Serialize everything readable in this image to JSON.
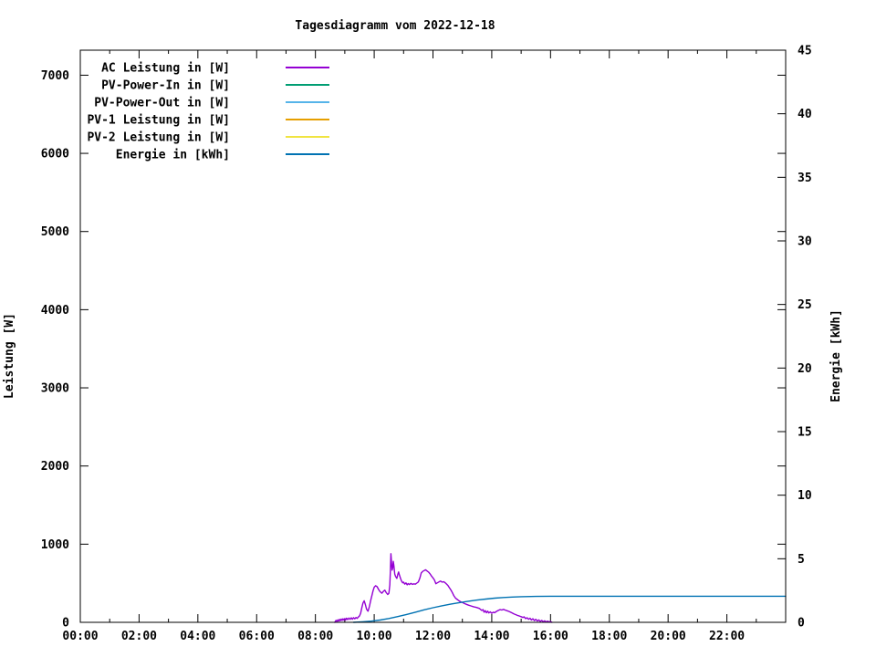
{
  "chart_data": {
    "type": "line",
    "title": "Tagesdiagramm vom 2022-12-18",
    "x_axis": {
      "label": "",
      "range_hours": [
        0,
        24
      ],
      "major_tick_step_hours": 2,
      "minor_tick_step_hours": 1,
      "tick_values": [
        0,
        2,
        4,
        6,
        8,
        10,
        12,
        14,
        16,
        18,
        20,
        22
      ],
      "tick_labels": [
        "00:00",
        "02:00",
        "04:00",
        "06:00",
        "08:00",
        "10:00",
        "12:00",
        "14:00",
        "16:00",
        "18:00",
        "20:00",
        "22:00"
      ]
    },
    "y_left_axis": {
      "label": "Leistung [W]",
      "range": [
        0,
        7320
      ],
      "tick_values": [
        0,
        1000,
        2000,
        3000,
        4000,
        5000,
        6000,
        7000
      ],
      "tick_labels": [
        "0",
        "1000",
        "2000",
        "3000",
        "4000",
        "5000",
        "6000",
        "7000"
      ]
    },
    "y_right_axis": {
      "label": "Energie [kWh]",
      "range": [
        0,
        45
      ],
      "tick_values": [
        0,
        5,
        10,
        15,
        20,
        25,
        30,
        35,
        40,
        45
      ],
      "tick_labels": [
        "0",
        "5",
        "10",
        "15",
        "20",
        "25",
        "30",
        "35",
        "40",
        "45"
      ]
    },
    "grid": false,
    "legend_position": "top-left-inside",
    "legend": [
      {
        "label": "AC Leistung in [W]",
        "color": "#9400d3"
      },
      {
        "label": "PV-Power-In in [W]",
        "color": "#009e73"
      },
      {
        "label": "PV-Power-Out in [W]",
        "color": "#56b4e9"
      },
      {
        "label": "PV-1 Leistung in [W]",
        "color": "#e69f00"
      },
      {
        "label": "PV-2 Leistung in [W]",
        "color": "#f0e442"
      },
      {
        "label": "Energie in [kWh]",
        "color": "#0072b2"
      }
    ],
    "series": [
      {
        "name": "AC Leistung in [W]",
        "axis": "left",
        "color": "#9400d3",
        "units": "W",
        "points_hours_vs_watt": [
          [
            8.66,
            0
          ],
          [
            8.7,
            25
          ],
          [
            8.73,
            10
          ],
          [
            8.76,
            32
          ],
          [
            8.79,
            15
          ],
          [
            8.82,
            38
          ],
          [
            8.85,
            20
          ],
          [
            8.88,
            42
          ],
          [
            8.91,
            24
          ],
          [
            8.94,
            45
          ],
          [
            8.97,
            28
          ],
          [
            9.0,
            48
          ],
          [
            9.03,
            30
          ],
          [
            9.06,
            52
          ],
          [
            9.1,
            35
          ],
          [
            9.14,
            55
          ],
          [
            9.18,
            38
          ],
          [
            9.22,
            58
          ],
          [
            9.26,
            40
          ],
          [
            9.3,
            60
          ],
          [
            9.34,
            45
          ],
          [
            9.38,
            62
          ],
          [
            9.42,
            50
          ],
          [
            9.46,
            68
          ],
          [
            9.5,
            82
          ],
          [
            9.54,
            120
          ],
          [
            9.58,
            190
          ],
          [
            9.62,
            248
          ],
          [
            9.66,
            275
          ],
          [
            9.7,
            228
          ],
          [
            9.74,
            168
          ],
          [
            9.79,
            142
          ],
          [
            9.84,
            205
          ],
          [
            9.88,
            278
          ],
          [
            9.92,
            340
          ],
          [
            9.96,
            402
          ],
          [
            10.0,
            450
          ],
          [
            10.05,
            468
          ],
          [
            10.1,
            455
          ],
          [
            10.15,
            420
          ],
          [
            10.2,
            392
          ],
          [
            10.26,
            372
          ],
          [
            10.31,
            396
          ],
          [
            10.36,
            412
          ],
          [
            10.41,
            380
          ],
          [
            10.46,
            356
          ],
          [
            10.5,
            372
          ],
          [
            10.53,
            480
          ],
          [
            10.55,
            655
          ],
          [
            10.57,
            878
          ],
          [
            10.59,
            760
          ],
          [
            10.61,
            668
          ],
          [
            10.63,
            700
          ],
          [
            10.65,
            780
          ],
          [
            10.67,
            722
          ],
          [
            10.7,
            618
          ],
          [
            10.73,
            585
          ],
          [
            10.77,
            562
          ],
          [
            10.8,
            612
          ],
          [
            10.83,
            645
          ],
          [
            10.86,
            602
          ],
          [
            10.9,
            556
          ],
          [
            10.93,
            530
          ],
          [
            10.97,
            506
          ],
          [
            11.0,
            514
          ],
          [
            11.04,
            488
          ],
          [
            11.08,
            504
          ],
          [
            11.12,
            480
          ],
          [
            11.16,
            496
          ],
          [
            11.2,
            483
          ],
          [
            11.25,
            498
          ],
          [
            11.3,
            486
          ],
          [
            11.35,
            493
          ],
          [
            11.4,
            488
          ],
          [
            11.45,
            502
          ],
          [
            11.5,
            516
          ],
          [
            11.55,
            562
          ],
          [
            11.6,
            630
          ],
          [
            11.65,
            652
          ],
          [
            11.7,
            662
          ],
          [
            11.75,
            672
          ],
          [
            11.8,
            656
          ],
          [
            11.85,
            642
          ],
          [
            11.9,
            620
          ],
          [
            11.95,
            592
          ],
          [
            12.0,
            568
          ],
          [
            12.05,
            542
          ],
          [
            12.1,
            494
          ],
          [
            12.15,
            506
          ],
          [
            12.2,
            516
          ],
          [
            12.26,
            528
          ],
          [
            12.31,
            514
          ],
          [
            12.36,
            520
          ],
          [
            12.41,
            508
          ],
          [
            12.46,
            490
          ],
          [
            12.51,
            472
          ],
          [
            12.56,
            442
          ],
          [
            12.61,
            414
          ],
          [
            12.66,
            378
          ],
          [
            12.71,
            340
          ],
          [
            12.77,
            308
          ],
          [
            12.83,
            292
          ],
          [
            12.89,
            274
          ],
          [
            12.95,
            262
          ],
          [
            13.01,
            252
          ],
          [
            13.07,
            240
          ],
          [
            13.14,
            230
          ],
          [
            13.21,
            220
          ],
          [
            13.29,
            210
          ],
          [
            13.38,
            200
          ],
          [
            13.48,
            190
          ],
          [
            13.58,
            178
          ],
          [
            13.66,
            152
          ],
          [
            13.7,
            164
          ],
          [
            13.74,
            130
          ],
          [
            13.78,
            150
          ],
          [
            13.82,
            122
          ],
          [
            13.86,
            142
          ],
          [
            13.9,
            120
          ],
          [
            13.95,
            134
          ],
          [
            14.0,
            116
          ],
          [
            14.05,
            130
          ],
          [
            14.1,
            124
          ],
          [
            14.16,
            140
          ],
          [
            14.22,
            152
          ],
          [
            14.28,
            162
          ],
          [
            14.34,
            158
          ],
          [
            14.4,
            166
          ],
          [
            14.46,
            156
          ],
          [
            14.52,
            148
          ],
          [
            14.58,
            140
          ],
          [
            14.64,
            130
          ],
          [
            14.7,
            118
          ],
          [
            14.76,
            106
          ],
          [
            14.82,
            98
          ],
          [
            14.88,
            88
          ],
          [
            14.94,
            80
          ],
          [
            15.0,
            72
          ],
          [
            15.06,
            62
          ],
          [
            15.1,
            70
          ],
          [
            15.15,
            48
          ],
          [
            15.2,
            58
          ],
          [
            15.25,
            38
          ],
          [
            15.3,
            52
          ],
          [
            15.35,
            30
          ],
          [
            15.4,
            45
          ],
          [
            15.45,
            22
          ],
          [
            15.5,
            38
          ],
          [
            15.55,
            18
          ],
          [
            15.6,
            30
          ],
          [
            15.65,
            12
          ],
          [
            15.7,
            25
          ],
          [
            15.75,
            8
          ],
          [
            15.8,
            20
          ],
          [
            15.85,
            6
          ],
          [
            15.9,
            15
          ],
          [
            15.95,
            5
          ],
          [
            16.0,
            10
          ],
          [
            16.05,
            0
          ]
        ]
      },
      {
        "name": "PV-Power-In in [W]",
        "axis": "left",
        "color": "#009e73",
        "units": "W",
        "points_hours_vs_watt": []
      },
      {
        "name": "PV-Power-Out in [W]",
        "axis": "left",
        "color": "#56b4e9",
        "units": "W",
        "points_hours_vs_watt": []
      },
      {
        "name": "PV-1 Leistung in [W]",
        "axis": "left",
        "color": "#e69f00",
        "units": "W",
        "points_hours_vs_watt": []
      },
      {
        "name": "PV-2 Leistung in [W]",
        "axis": "left",
        "color": "#f0e442",
        "units": "W",
        "points_hours_vs_watt": []
      },
      {
        "name": "Energie in [kWh]",
        "axis": "right",
        "color": "#0072b2",
        "units": "kWh",
        "points_hours_vs_kwh": [
          [
            9.3,
            0
          ],
          [
            9.6,
            0.04
          ],
          [
            9.9,
            0.09
          ],
          [
            10.2,
            0.18
          ],
          [
            10.5,
            0.3
          ],
          [
            10.8,
            0.45
          ],
          [
            11.1,
            0.62
          ],
          [
            11.4,
            0.8
          ],
          [
            11.7,
            0.98
          ],
          [
            12.0,
            1.15
          ],
          [
            12.3,
            1.3
          ],
          [
            12.6,
            1.43
          ],
          [
            12.9,
            1.55
          ],
          [
            13.2,
            1.66
          ],
          [
            13.5,
            1.75
          ],
          [
            13.8,
            1.83
          ],
          [
            14.1,
            1.9
          ],
          [
            14.4,
            1.95
          ],
          [
            14.7,
            1.99
          ],
          [
            15.0,
            2.02
          ],
          [
            15.5,
            2.04
          ],
          [
            16.0,
            2.05
          ],
          [
            18.0,
            2.05
          ],
          [
            20.0,
            2.05
          ],
          [
            22.0,
            2.05
          ],
          [
            24.0,
            2.05
          ]
        ]
      }
    ]
  }
}
